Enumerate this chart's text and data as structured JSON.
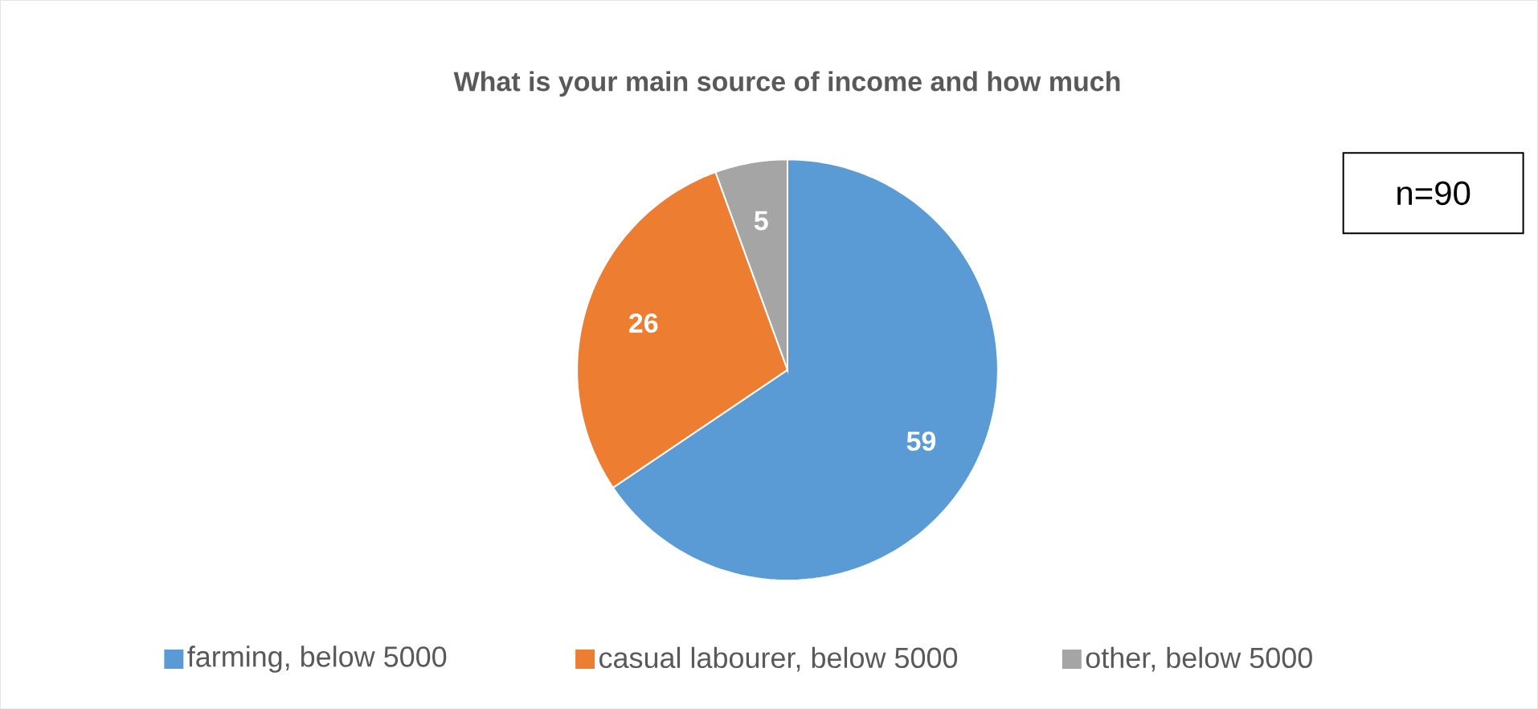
{
  "chart_data": {
    "type": "pie",
    "title": "What is your main source of income and how much",
    "categories": [
      "farming, below 5000",
      "casual labourer, below 5000",
      "other, below 5000"
    ],
    "values": [
      59,
      26,
      5
    ],
    "colors": [
      "#5b9bd5",
      "#ed7d31",
      "#a5a5a5"
    ],
    "data_labels": true,
    "legend": "bottom",
    "annotations": [
      "n=90"
    ]
  }
}
